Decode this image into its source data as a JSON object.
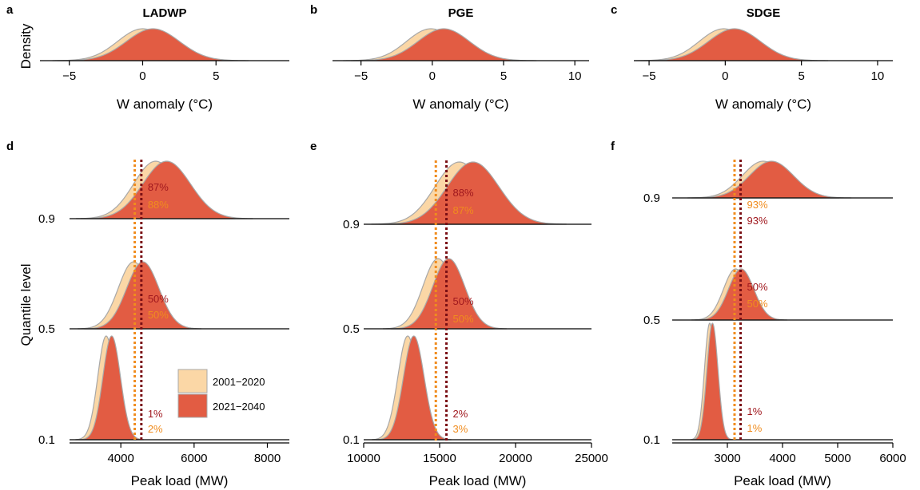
{
  "colors": {
    "period1": "#FBD7A6",
    "period2": "#E25C43",
    "outline": "#A8A8A8",
    "vline1": "#F08C1E",
    "vline2": "#7A0F14",
    "pct1": "#F08C1E",
    "pct2": "#A0181E"
  },
  "legend": {
    "period1": "2001−2020",
    "period2": "2021−2040"
  },
  "top_ylabel": "Density",
  "bottom_ylabel": "Quantile level",
  "chart_data": [
    {
      "panel": "a",
      "title": "LADWP",
      "type": "area",
      "xlabel": "W anomaly (°C)",
      "xlim": [
        -7,
        10
      ],
      "xticks": [
        "−5",
        "0",
        "5"
      ],
      "xtick_values": [
        -5,
        0,
        5
      ],
      "series": [
        {
          "name": "2001−2020",
          "mean": 0.0,
          "sd": 1.7
        },
        {
          "name": "2021−2040",
          "mean": 0.7,
          "sd": 1.8
        }
      ]
    },
    {
      "panel": "b",
      "title": "PGE",
      "type": "area",
      "xlabel": "W anomaly (°C)",
      "xlim": [
        -7,
        11
      ],
      "xticks": [
        "−5",
        "0",
        "5",
        "10"
      ],
      "xtick_values": [
        -5,
        0,
        5,
        10
      ],
      "series": [
        {
          "name": "2001−2020",
          "mean": -0.1,
          "sd": 1.7
        },
        {
          "name": "2021−2040",
          "mean": 0.8,
          "sd": 1.8
        }
      ]
    },
    {
      "panel": "c",
      "title": "SDGE",
      "type": "area",
      "xlabel": "W anomaly (°C)",
      "xlim": [
        -6,
        11
      ],
      "xticks": [
        "−5",
        "0",
        "5",
        "10"
      ],
      "xtick_values": [
        -5,
        0,
        5,
        10
      ],
      "series": [
        {
          "name": "2001−2020",
          "mean": -0.1,
          "sd": 1.6
        },
        {
          "name": "2021−2040",
          "mean": 0.6,
          "sd": 1.7
        }
      ]
    },
    {
      "panel": "d",
      "type": "area",
      "xlabel": "Peak load (MW)",
      "xlim": [
        2600,
        8600
      ],
      "xticks": [
        "4000",
        "6000",
        "8000"
      ],
      "xtick_values": [
        4000,
        6000,
        8000
      ],
      "quantile_labels": [
        "0.9",
        "0.5",
        "0.1"
      ],
      "vlines": {
        "2001−2020": 4380,
        "2021−2040": 4560
      },
      "rows": [
        {
          "q": "0.9",
          "p1": {
            "mean": 4950,
            "sd": 600
          },
          "p2": {
            "mean": 5250,
            "sd": 650
          },
          "pct2": "87%",
          "pct1": "88%"
        },
        {
          "q": "0.5",
          "p1": {
            "mean": 4350,
            "sd": 420
          },
          "p2": {
            "mean": 4600,
            "sd": 440
          },
          "pct2": "50%",
          "pct1": "50%"
        },
        {
          "q": "0.1",
          "p1": {
            "mean": 3600,
            "sd": 230
          },
          "p2": {
            "mean": 3750,
            "sd": 240
          },
          "pct2": "1%",
          "pct1": "2%"
        }
      ]
    },
    {
      "panel": "e",
      "type": "area",
      "xlabel": "Peak load (MW)",
      "xlim": [
        10000,
        25000
      ],
      "xticks": [
        "10000",
        "15000",
        "20000",
        "25000"
      ],
      "xtick_values": [
        10000,
        15000,
        20000,
        25000
      ],
      "quantile_labels": [
        "0.9",
        "0.5",
        "0.1"
      ],
      "vlines": {
        "2001−2020": 14750,
        "2021−2040": 15450
      },
      "rows": [
        {
          "q": "0.9",
          "p1": {
            "mean": 16300,
            "sd": 1600
          },
          "p2": {
            "mean": 17200,
            "sd": 1700
          },
          "pct2": "88%",
          "pct1": "87%"
        },
        {
          "q": "0.5",
          "p1": {
            "mean": 14900,
            "sd": 1000
          },
          "p2": {
            "mean": 15600,
            "sd": 1050
          },
          "pct2": "50%",
          "pct1": "50%"
        },
        {
          "q": "0.1",
          "p1": {
            "mean": 12900,
            "sd": 650
          },
          "p2": {
            "mean": 13300,
            "sd": 680
          },
          "pct2": "2%",
          "pct1": "3%"
        }
      ]
    },
    {
      "panel": "f",
      "type": "area",
      "xlabel": "Peak load (MW)",
      "xlim": [
        2000,
        6000
      ],
      "xticks": [
        "3000",
        "4000",
        "5000",
        "6000"
      ],
      "xtick_values": [
        3000,
        4000,
        5000,
        6000
      ],
      "quantile_labels": [
        "0.9",
        "0.5",
        "0.1"
      ],
      "vlines": {
        "2001−2020": 3130,
        "2021−2040": 3240
      },
      "rows": [
        {
          "q": "0.9",
          "p1": {
            "mean": 3650,
            "sd": 380
          },
          "p2": {
            "mean": 3800,
            "sd": 400
          },
          "pct2": "93%",
          "pct1": "93%"
        },
        {
          "q": "0.5",
          "p1": {
            "mean": 3150,
            "sd": 220
          },
          "p2": {
            "mean": 3250,
            "sd": 230
          },
          "pct2": "50%",
          "pct1": "50%"
        },
        {
          "q": "0.1",
          "p1": {
            "mean": 2680,
            "sd": 95
          },
          "p2": {
            "mean": 2730,
            "sd": 100
          },
          "pct2": "1%",
          "pct1": "1%"
        }
      ]
    }
  ]
}
